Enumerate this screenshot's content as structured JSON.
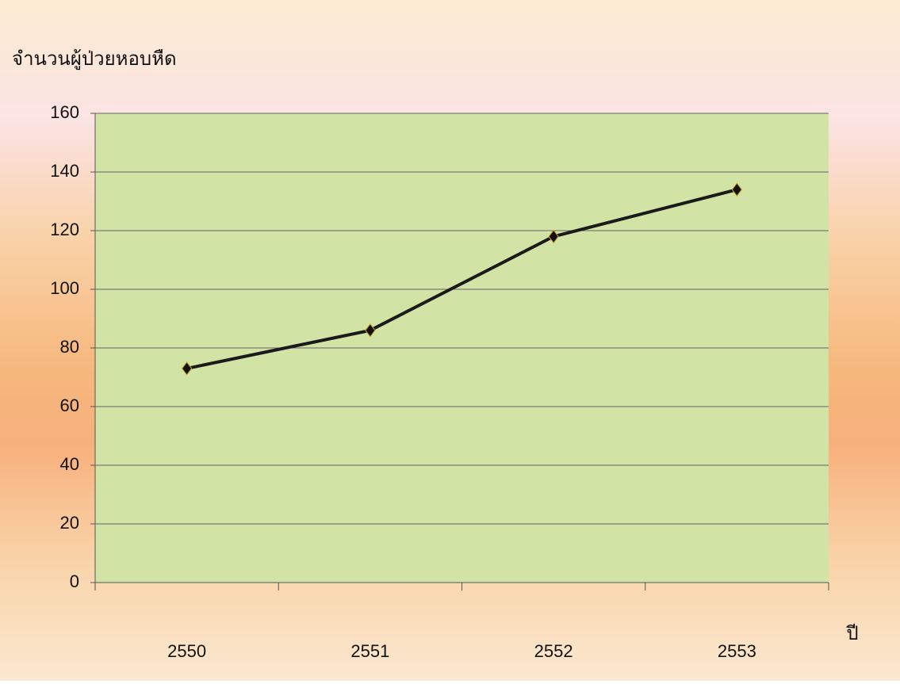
{
  "chart_data": {
    "type": "line",
    "y_label": "จำนวนผู้ป่วยหอบหืด",
    "x_label": "ปี",
    "categories": [
      "2550",
      "2551",
      "2552",
      "2553"
    ],
    "values": [
      73,
      86,
      118,
      134
    ],
    "color": "#1a1a1a",
    "ylim": [
      0,
      160
    ],
    "yticks": [
      0,
      20,
      40,
      60,
      80,
      100,
      120,
      140,
      160
    ],
    "grid": true
  }
}
